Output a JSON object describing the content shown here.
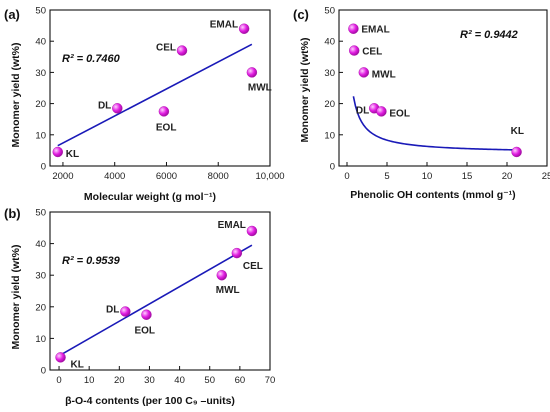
{
  "figure": {
    "panels": [
      "(a)",
      "(b)",
      "(c)"
    ]
  },
  "colors": {
    "marker_fill": "#e11de1",
    "marker_highlight": "#ffd0ff",
    "fit_line": "#1a1ab8",
    "axis": "#111111"
  },
  "chart_data": [
    {
      "panel": "(a)",
      "type": "scatter",
      "xlabel": "Molecular weight (g mol⁻¹)",
      "ylabel": "Monomer yield (wt%)",
      "xlim": [
        1500,
        10000
      ],
      "ylim": [
        0,
        50
      ],
      "xticks": [
        2000,
        4000,
        6000,
        8000,
        10000
      ],
      "xtick_labels": [
        "2000",
        "4000",
        "6000",
        "8000",
        "10,000"
      ],
      "yticks": [
        0,
        10,
        20,
        30,
        40,
        50
      ],
      "r2": "R² = 0.7460",
      "points": [
        {
          "label": "KL",
          "x": 1800,
          "y": 4.5
        },
        {
          "label": "DL",
          "x": 4100,
          "y": 18.5
        },
        {
          "label": "EOL",
          "x": 5900,
          "y": 17.5
        },
        {
          "label": "CEL",
          "x": 6600,
          "y": 37
        },
        {
          "label": "EMAL",
          "x": 9000,
          "y": 44
        },
        {
          "label": "MWL",
          "x": 9300,
          "y": 30
        }
      ],
      "fit": {
        "kind": "linear",
        "from": [
          1800,
          6.5
        ],
        "to": [
          9300,
          39
        ]
      }
    },
    {
      "panel": "(b)",
      "type": "scatter",
      "xlabel": "β-O-4 contents (per 100 C₉ –units)",
      "ylabel": "Monomer yield (wt%)",
      "xlim": [
        -3,
        70
      ],
      "ylim": [
        0,
        50
      ],
      "xticks": [
        0,
        10,
        20,
        30,
        40,
        50,
        60,
        70
      ],
      "xtick_labels": [
        "0",
        "10",
        "20",
        "30",
        "40",
        "50",
        "60",
        "70"
      ],
      "yticks": [
        0,
        10,
        20,
        30,
        40,
        50
      ],
      "r2": "R² = 0.9539",
      "points": [
        {
          "label": "KL",
          "x": 0.5,
          "y": 4
        },
        {
          "label": "DL",
          "x": 22,
          "y": 18.5
        },
        {
          "label": "EOL",
          "x": 29,
          "y": 17.5
        },
        {
          "label": "MWL",
          "x": 54,
          "y": 30
        },
        {
          "label": "CEL",
          "x": 59,
          "y": 37
        },
        {
          "label": "EMAL",
          "x": 64,
          "y": 44
        }
      ],
      "fit": {
        "kind": "linear",
        "from": [
          0,
          4.5
        ],
        "to": [
          64,
          39.5
        ]
      }
    },
    {
      "panel": "(c)",
      "type": "scatter",
      "xlabel": "Phenolic OH contents (mmol g⁻¹)",
      "ylabel": "Monomer yield (wt%)",
      "xlim": [
        -1,
        25
      ],
      "ylim": [
        0,
        50
      ],
      "xticks": [
        0,
        5,
        10,
        15,
        20,
        25
      ],
      "xtick_labels": [
        "0",
        "5",
        "10",
        "15",
        "20",
        "25"
      ],
      "yticks": [
        0,
        10,
        20,
        30,
        40,
        50
      ],
      "r2": "R² = 0.9442",
      "points": [
        {
          "label": "EMAL",
          "x": 0.8,
          "y": 44
        },
        {
          "label": "CEL",
          "x": 0.9,
          "y": 37
        },
        {
          "label": "MWL",
          "x": 2.1,
          "y": 30
        },
        {
          "label": "DL",
          "x": 3.4,
          "y": 18.5
        },
        {
          "label": "EOL",
          "x": 4.3,
          "y": 17.5
        },
        {
          "label": "KL",
          "x": 21.2,
          "y": 4.5
        }
      ],
      "fit": {
        "kind": "hyperbolic",
        "a": 22.8,
        "b": 4.1,
        "c": 0.45,
        "x_from": 0.8,
        "x_to": 21.2
      }
    }
  ]
}
